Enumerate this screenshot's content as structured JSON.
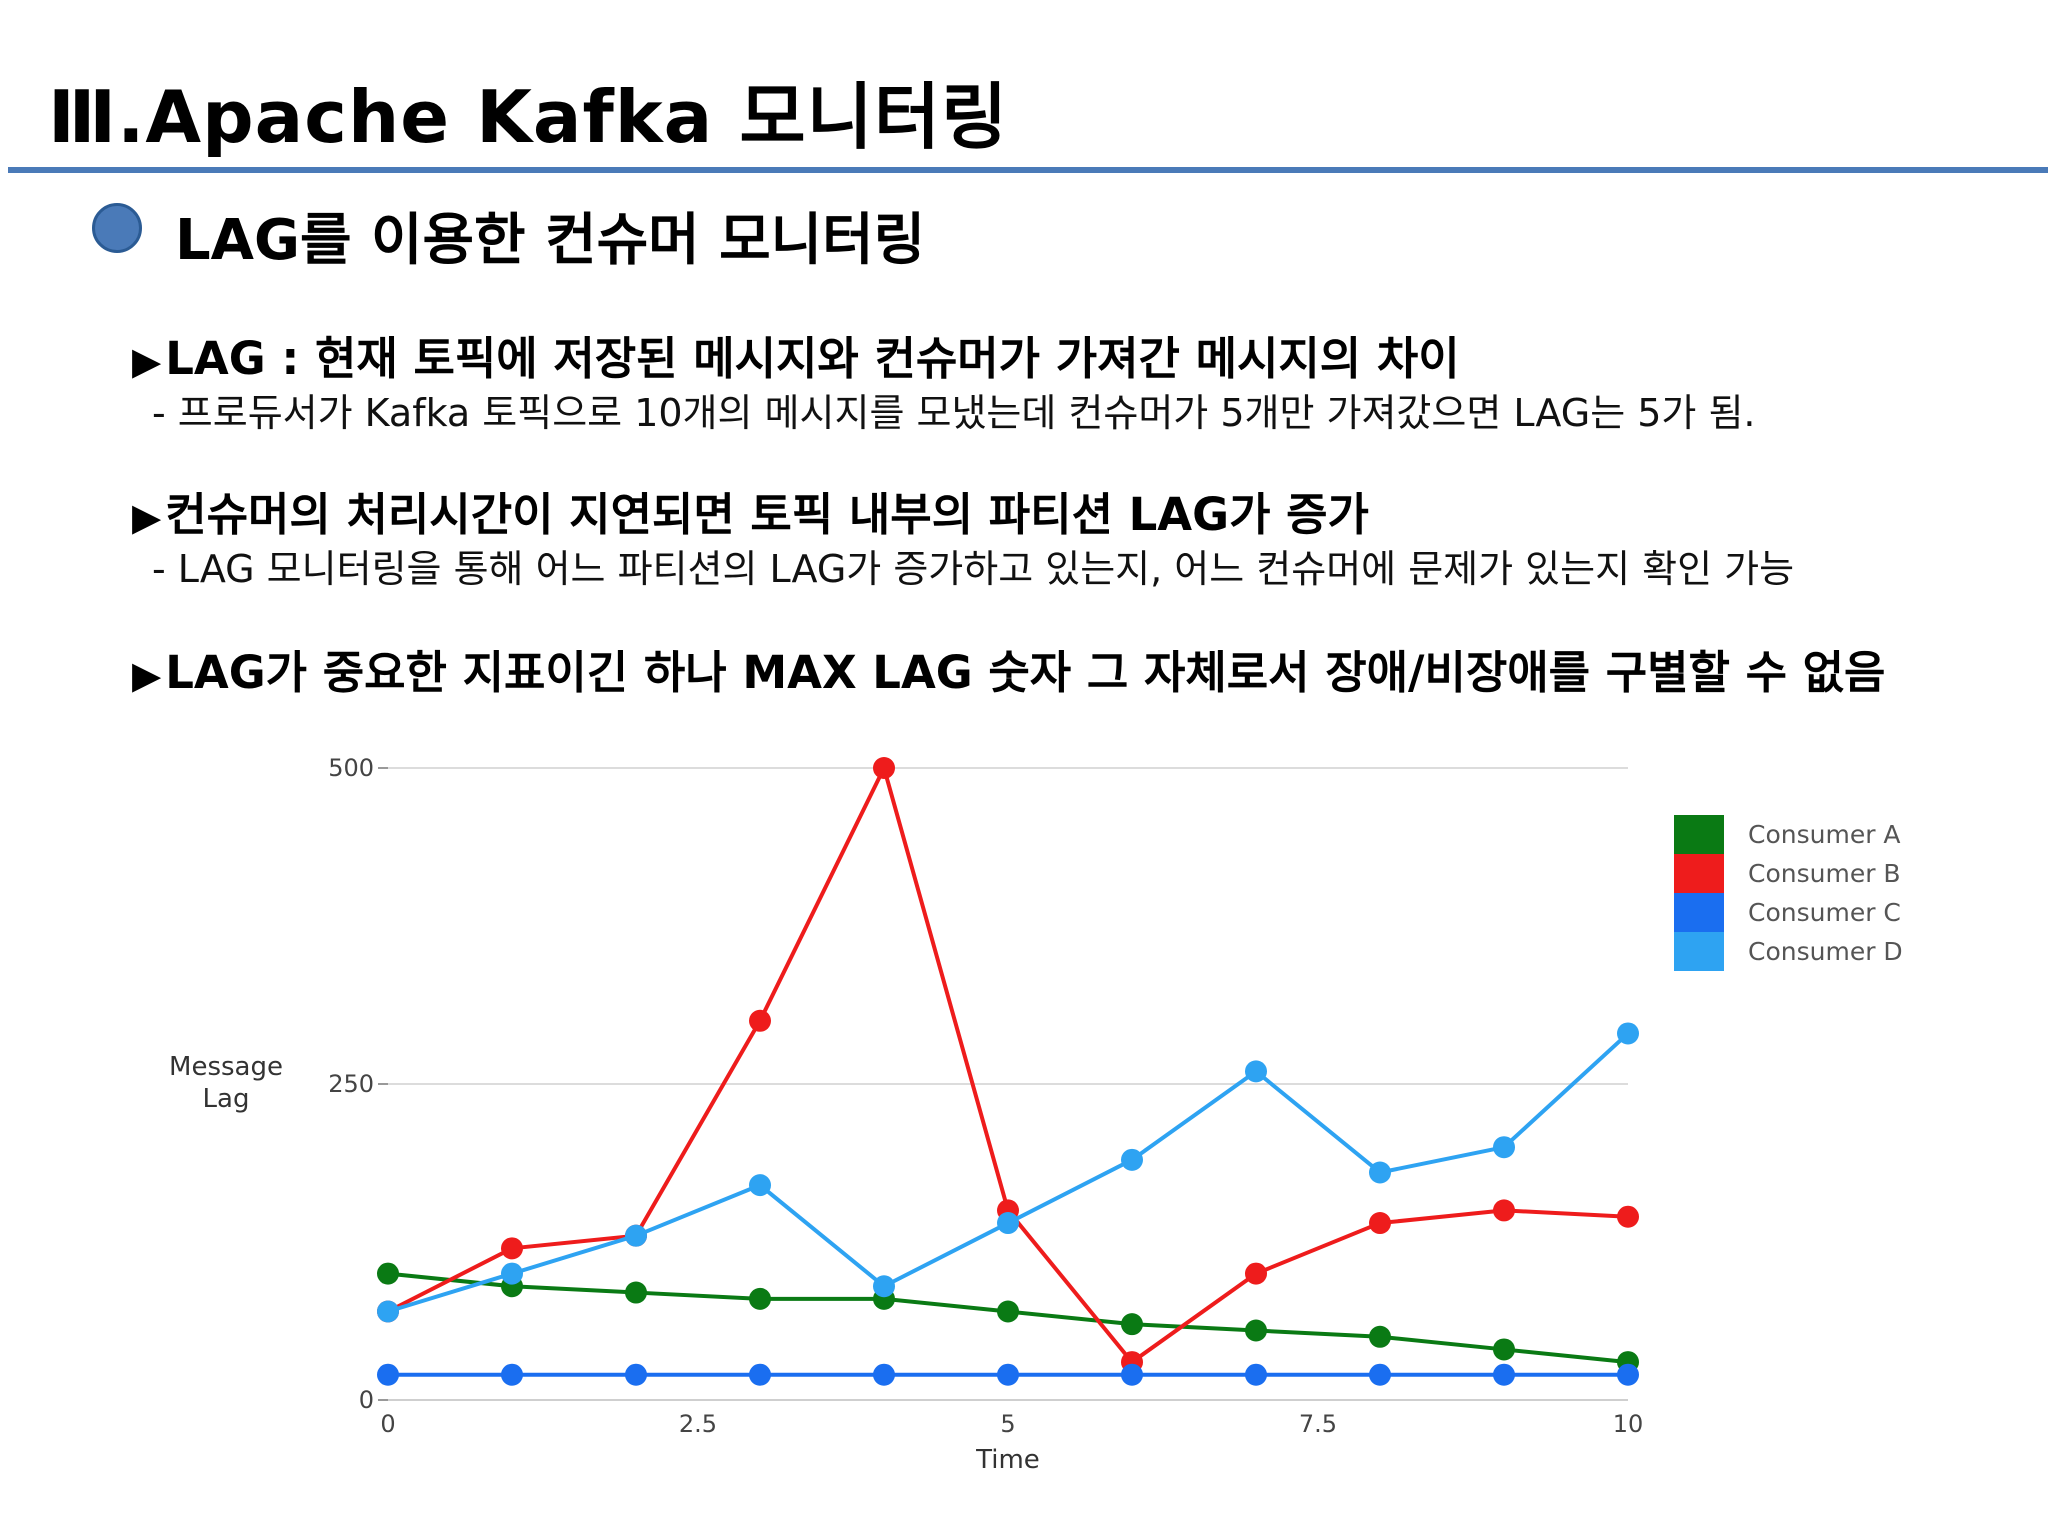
{
  "header": {
    "title": "Ⅲ.Apache Kafka 모니터링",
    "subtitle": "LAG를 이용한 컨슈머 모니터링"
  },
  "points": [
    {
      "arrow": "▶",
      "heading": "LAG : 현재 토픽에 저장된 메시지와 컨슈머가 가져간 메시지의 차이",
      "detail": "- 프로듀서가 Kafka 토픽으로 10개의 메시지를 모냈는데 컨슈머가 5개만 가져갔으면 LAG는 5가 됨."
    },
    {
      "arrow": "▶",
      "heading": "컨슈머의 처리시간이 지연되면 토픽 내부의 파티션 LAG가 증가",
      "detail": "- LAG 모니터링을 통해 어느 파티션의 LAG가 증가하고 있는지, 어느 컨슈머에 문제가 있는지 확인 가능"
    },
    {
      "arrow": "▶",
      "heading": "LAG가 중요한 지표이긴 하나 MAX LAG 숫자 그 자체로서 장애/비장애를 구별할 수 없음",
      "detail": ""
    }
  ],
  "chart_data": {
    "type": "line",
    "xlabel": "Time",
    "ylabel_lines": [
      "Message",
      "Lag"
    ],
    "xlim": [
      0,
      10
    ],
    "ylim": [
      0,
      500
    ],
    "x_ticks": [
      0,
      2.5,
      5,
      7.5,
      10
    ],
    "x_tick_labels": [
      "0",
      "2.5",
      "5",
      "7.5",
      "10"
    ],
    "y_ticks": [
      0,
      250,
      500
    ],
    "y_tick_labels": [
      "0",
      "250",
      "500"
    ],
    "grid": "horizontal",
    "legend_position": "right",
    "x": [
      0,
      1,
      2,
      3,
      4,
      5,
      6,
      7,
      8,
      9,
      10
    ],
    "series": [
      {
        "name": "Consumer A",
        "color": "#0a7a14",
        "values": [
          100,
          90,
          85,
          80,
          80,
          70,
          60,
          55,
          50,
          40,
          30
        ]
      },
      {
        "name": "Consumer B",
        "color": "#ee1c1c",
        "values": [
          70,
          120,
          130,
          300,
          500,
          150,
          30,
          100,
          140,
          150,
          145
        ]
      },
      {
        "name": "Consumer C",
        "color": "#1a6ef0",
        "values": [
          20,
          20,
          20,
          20,
          20,
          20,
          20,
          20,
          20,
          20,
          20
        ]
      },
      {
        "name": "Consumer D",
        "color": "#2ea3f2",
        "values": [
          70,
          100,
          130,
          170,
          90,
          140,
          190,
          260,
          180,
          200,
          290
        ]
      }
    ]
  }
}
